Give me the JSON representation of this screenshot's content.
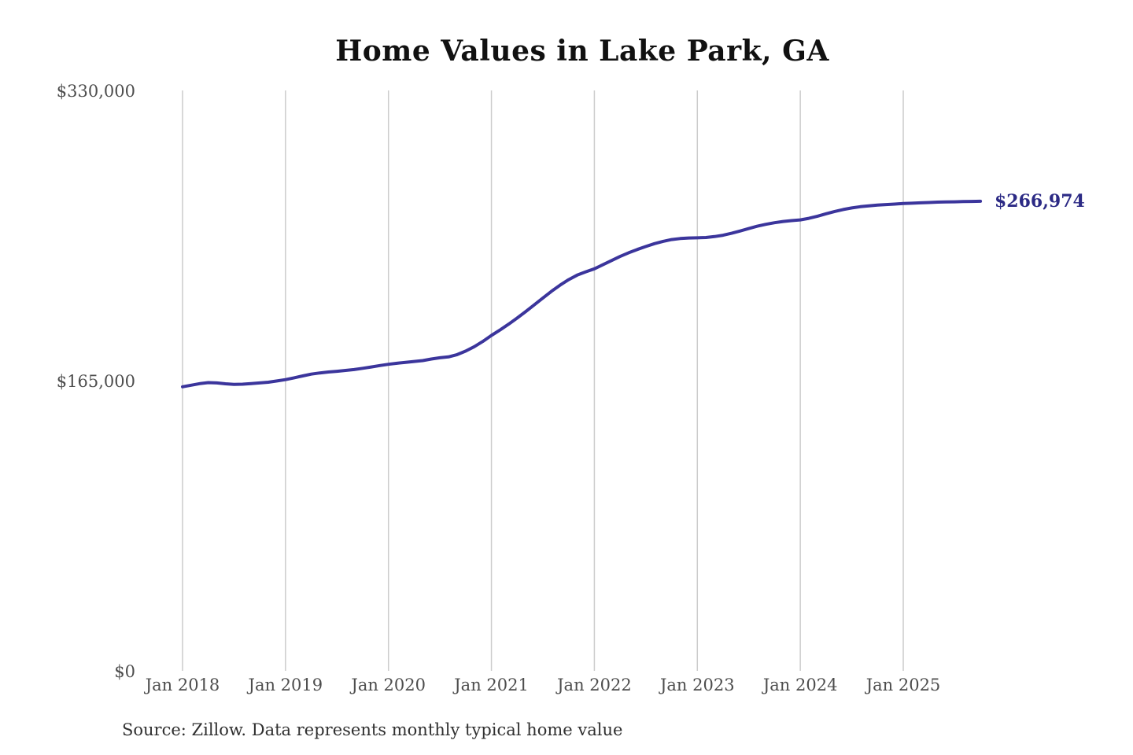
{
  "title": "Home Values in Lake Park, GA",
  "source_note": "Source: Zillow. Data represents monthly typical home value",
  "colors": {
    "line": "#3b359c",
    "end_label_text": "#2c2a85",
    "gridline": "#cccccc",
    "tick_text": "#4d4d4d",
    "title_text": "#111111",
    "source_text": "#303030"
  },
  "chart_data": {
    "type": "line",
    "title": "Home Values in Lake Park, GA",
    "xlabel": "",
    "ylabel": "",
    "ylim": [
      0,
      330000
    ],
    "y_ticks": [
      0,
      165000,
      330000
    ],
    "y_tick_labels": [
      "$0",
      "$165,000",
      "$330,000"
    ],
    "x_tick_labels": [
      "Jan 2018",
      "Jan 2019",
      "Jan 2020",
      "Jan 2021",
      "Jan 2022",
      "Jan 2023",
      "Jan 2024",
      "Jan 2025"
    ],
    "grid": "vertical-only",
    "legend": "none",
    "end_annotation": {
      "text": "$266,974",
      "value": 266974
    },
    "series": [
      {
        "name": "Monthly typical home value",
        "start_month": "2018-01",
        "frequency": "monthly",
        "values": [
          161500,
          162400,
          163300,
          163900,
          163700,
          163200,
          162900,
          163000,
          163300,
          163700,
          164100,
          164800,
          165600,
          166600,
          167700,
          168700,
          169400,
          169900,
          170300,
          170800,
          171300,
          172000,
          172800,
          173600,
          174300,
          174900,
          175400,
          175900,
          176400,
          177300,
          178000,
          178500,
          179800,
          181800,
          184300,
          187300,
          190700,
          193800,
          197100,
          200600,
          204300,
          208100,
          212000,
          215800,
          219300,
          222400,
          225000,
          226900,
          228600,
          230900,
          233300,
          235600,
          237700,
          239600,
          241300,
          242900,
          244200,
          245200,
          245800,
          246100,
          246200,
          246400,
          246900,
          247700,
          248800,
          250100,
          251500,
          252800,
          253900,
          254800,
          255500,
          256000,
          256400,
          257300,
          258500,
          259900,
          261200,
          262300,
          263200,
          263900,
          264400,
          264800,
          265100,
          265400,
          265700,
          265900,
          266100,
          266300,
          266500,
          266600,
          266700,
          266800,
          266900,
          266974
        ]
      }
    ]
  }
}
